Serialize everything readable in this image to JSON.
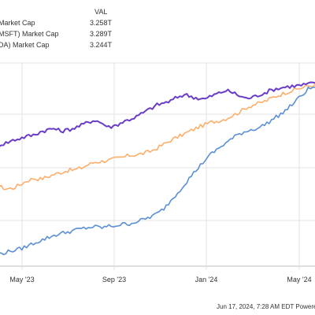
{
  "legend": {
    "header": "VAL",
    "rows": [
      {
        "label": "Market Cap",
        "value": "3.258T",
        "color": "#fdae6b"
      },
      {
        "label": "MSFT) Market Cap",
        "value": "3.289T",
        "color": "#6a3dc9"
      },
      {
        "label": "DA) Market Cap",
        "value": "3.244T",
        "color": "#5b8fd6"
      }
    ]
  },
  "footer": {
    "text": "Jun 17, 2024, 7:28 AM EDT Powere"
  },
  "chart_data": {
    "type": "line",
    "x_tick_labels": [
      "May '23",
      "Sep '23",
      "Jan '24",
      "May '24"
    ],
    "series": [
      {
        "name": "Market Cap",
        "color": "#fdae6b",
        "values": [
          1.7,
          1.72,
          1.68,
          1.69,
          1.74,
          1.8,
          1.84,
          1.83,
          1.86,
          1.9,
          1.93,
          1.96,
          1.97,
          2.0,
          2.05,
          2.09,
          2.1,
          2.12,
          2.14,
          2.16,
          2.19,
          2.2,
          2.22,
          2.25,
          2.3,
          2.36,
          2.42,
          2.47,
          2.52,
          2.57,
          2.62,
          2.66,
          2.7,
          2.72,
          2.75,
          2.8,
          2.85,
          2.92,
          2.96,
          2.99,
          3.03,
          3.08,
          3.12,
          3.16,
          3.19,
          3.22,
          3.25,
          3.26
        ]
      },
      {
        "name": "MSFT) Market Cap",
        "color": "#6a3dc9",
        "values": [
          2.3,
          2.35,
          2.38,
          2.42,
          2.45,
          2.48,
          2.5,
          2.55,
          2.58,
          2.6,
          2.56,
          2.58,
          2.61,
          2.65,
          2.7,
          2.73,
          2.68,
          2.62,
          2.65,
          2.7,
          2.74,
          2.78,
          2.84,
          2.9,
          2.96,
          2.99,
          3.02,
          3.08,
          3.12,
          3.09,
          3.06,
          3.05,
          3.1,
          3.14,
          3.18,
          3.15,
          3.1,
          3.06,
          3.08,
          3.12,
          3.16,
          3.2,
          3.22,
          3.24,
          3.25,
          3.26,
          3.28,
          3.29
        ]
      },
      {
        "name": "DA) Market Cap",
        "color": "#5b8fd6",
        "values": [
          0.7,
          0.69,
          0.71,
          0.74,
          0.76,
          0.8,
          0.85,
          0.89,
          0.93,
          0.97,
          1.0,
          1.02,
          1.05,
          1.07,
          1.09,
          1.1,
          1.09,
          1.11,
          1.12,
          1.14,
          1.15,
          1.18,
          1.21,
          1.25,
          1.3,
          1.38,
          1.5,
          1.62,
          1.75,
          1.88,
          2.0,
          2.12,
          2.22,
          2.3,
          2.38,
          2.45,
          2.52,
          2.56,
          2.59,
          2.62,
          2.68,
          2.75,
          2.82,
          2.9,
          3.0,
          3.1,
          3.2,
          3.24
        ]
      }
    ],
    "ylim": [
      0.5,
      3.6
    ],
    "grid": true
  }
}
